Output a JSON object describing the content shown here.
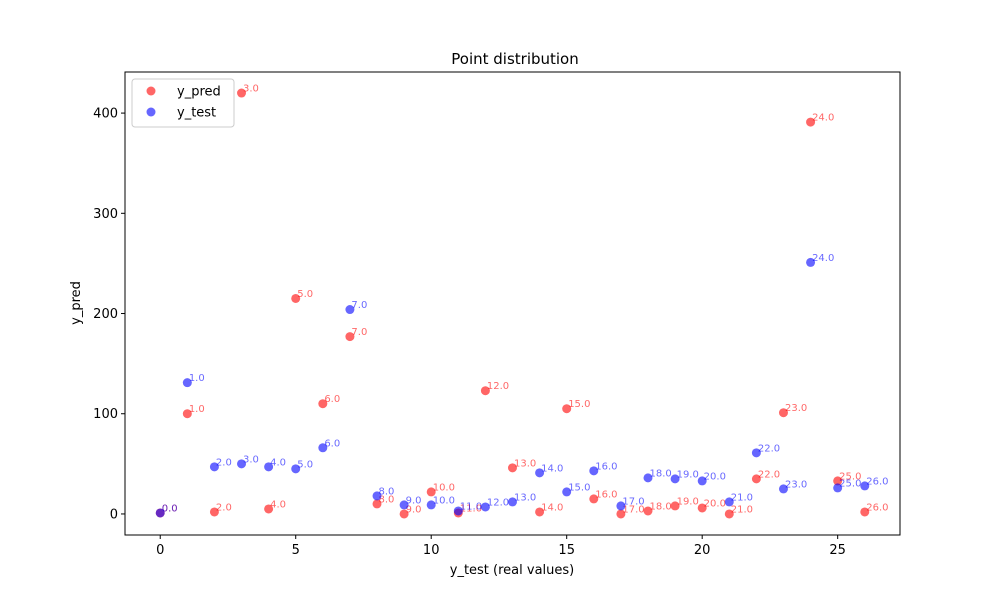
{
  "chart_data": {
    "type": "scatter",
    "title": "Point distribution",
    "xlabel": "y_test (real values)",
    "ylabel": "y_pred",
    "xlim": [
      -1.3,
      27.3
    ],
    "ylim": [
      -21,
      441
    ],
    "xticks": [
      0,
      5,
      10,
      15,
      20,
      25
    ],
    "yticks": [
      0,
      100,
      200,
      300,
      400
    ],
    "grid": false,
    "legend": "top-left",
    "series": [
      {
        "name": "y_pred",
        "color": "#ff0000",
        "x": [
          0,
          1,
          2,
          3,
          4,
          5,
          6,
          7,
          8,
          9,
          10,
          11,
          12,
          13,
          14,
          15,
          16,
          17,
          18,
          19,
          20,
          21,
          22,
          23,
          24,
          25,
          26
        ],
        "y": [
          1,
          100,
          2,
          420,
          5,
          215,
          110,
          177,
          10,
          0,
          22,
          1,
          123,
          46,
          2,
          105,
          15,
          0,
          3,
          8,
          6,
          0,
          35,
          101,
          391,
          33,
          2
        ],
        "labels": [
          "0.0",
          "1.0",
          "2.0",
          "3.0",
          "4.0",
          "5.0",
          "6.0",
          "7.0",
          "8.0",
          "9.0",
          "10.0",
          "11.0",
          "12.0",
          "13.0",
          "14.0",
          "15.0",
          "16.0",
          "17.0",
          "18.0",
          "19.0",
          "20.0",
          "21.0",
          "22.0",
          "23.0",
          "24.0",
          "25.0",
          "26.0"
        ]
      },
      {
        "name": "y_test",
        "color": "#0000ff",
        "x": [
          0,
          1,
          2,
          3,
          4,
          5,
          6,
          7,
          8,
          9,
          10,
          11,
          12,
          13,
          14,
          15,
          16,
          17,
          18,
          19,
          20,
          21,
          22,
          23,
          24,
          25,
          26
        ],
        "y": [
          1,
          131,
          47,
          50,
          47,
          45,
          66,
          204,
          18,
          9,
          9,
          3,
          7,
          12,
          41,
          22,
          43,
          8,
          36,
          35,
          33,
          12,
          61,
          25,
          251,
          26,
          28
        ],
        "labels": [
          "0.0",
          "1.0",
          "2.0",
          "3.0",
          "4.0",
          "5.0",
          "6.0",
          "7.0",
          "8.0",
          "9.0",
          "10.0",
          "11.0",
          "12.0",
          "13.0",
          "14.0",
          "15.0",
          "16.0",
          "17.0",
          "18.0",
          "19.0",
          "20.0",
          "21.0",
          "22.0",
          "23.0",
          "24.0",
          "25.0",
          "26.0"
        ]
      }
    ]
  }
}
